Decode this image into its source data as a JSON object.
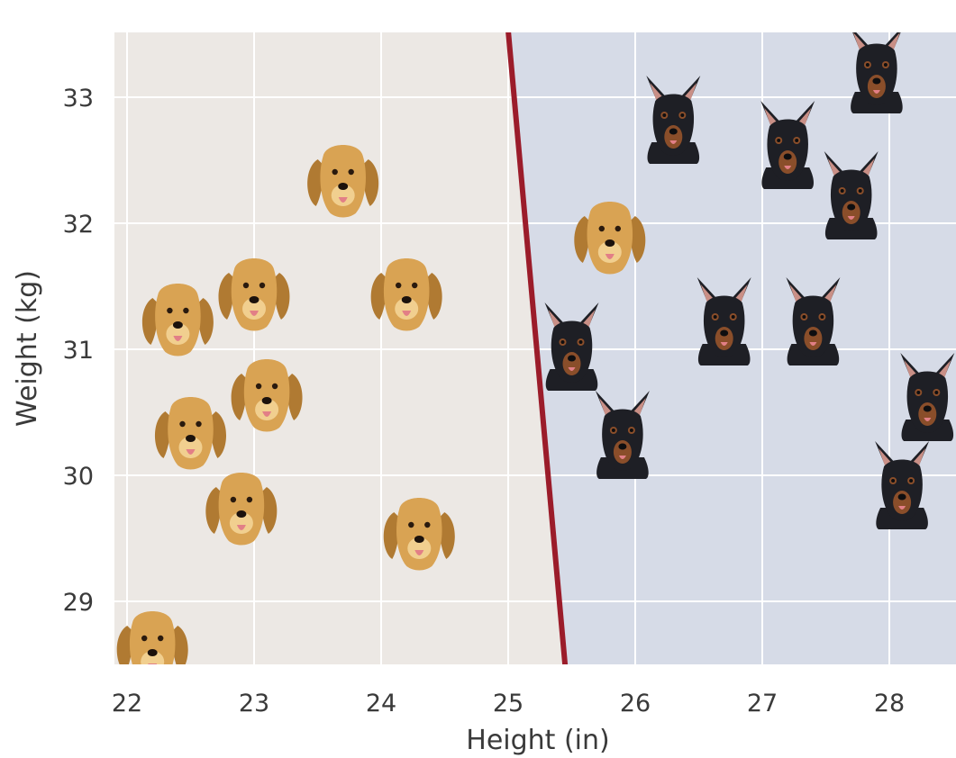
{
  "chart_data": {
    "type": "scatter",
    "title": "",
    "xlabel": "Height (in)",
    "ylabel": "Weight (kg)",
    "xlim": [
      21.9,
      29.0
    ],
    "ylim": [
      28.5,
      33.5
    ],
    "xticks": [
      "22",
      "23",
      "24",
      "25",
      "26",
      "27",
      "28"
    ],
    "yticks": [
      "29",
      "30",
      "31",
      "32",
      "33"
    ],
    "grid": true,
    "legend": "none",
    "decision_boundary": {
      "points": [
        [
          25.0,
          33.5
        ],
        [
          25.45,
          28.5
        ]
      ],
      "color": "#9b1c2a"
    },
    "regions": {
      "left_color": "#ece8e4",
      "right_color": "#d6dbe7"
    },
    "series": [
      {
        "marker": "golden-retriever-icon",
        "color": "#d7a04e",
        "points": [
          [
            22.2,
            28.65
          ],
          [
            22.4,
            31.25
          ],
          [
            22.5,
            30.35
          ],
          [
            22.9,
            29.75
          ],
          [
            23.0,
            31.45
          ],
          [
            23.1,
            30.65
          ],
          [
            23.7,
            32.35
          ],
          [
            24.2,
            31.45
          ],
          [
            24.3,
            29.55
          ],
          [
            25.8,
            31.9
          ]
        ]
      },
      {
        "marker": "doberman-icon",
        "color": "#1f1f24",
        "points": [
          [
            25.5,
            31.0
          ],
          [
            25.9,
            30.3
          ],
          [
            26.3,
            32.8
          ],
          [
            26.7,
            31.2
          ],
          [
            27.2,
            32.6
          ],
          [
            27.4,
            31.2
          ],
          [
            27.7,
            32.2
          ],
          [
            27.9,
            33.2
          ],
          [
            28.1,
            29.9
          ],
          [
            28.3,
            30.6
          ]
        ]
      }
    ]
  }
}
